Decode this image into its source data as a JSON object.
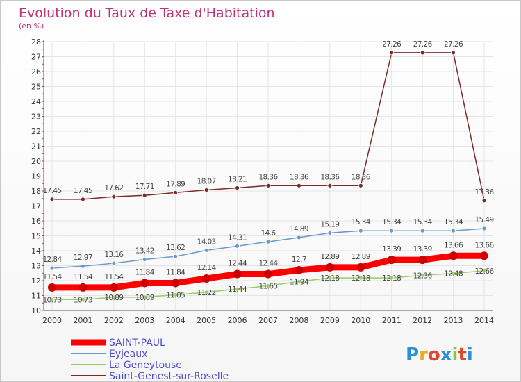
{
  "chart_data": {
    "type": "line",
    "title": "Evolution du Taux de Taxe d'Habitation",
    "subtitle": "(en %)",
    "ylim": [
      10,
      28
    ],
    "yticks": [
      10,
      11,
      12,
      13,
      14,
      15,
      16,
      17,
      18,
      19,
      20,
      21,
      22,
      23,
      24,
      25,
      26,
      27,
      28
    ],
    "x": [
      "2000",
      "2001",
      "2002",
      "2003",
      "2004",
      "2005",
      "2006",
      "2007",
      "2008",
      "2009",
      "2010",
      "2011",
      "2012",
      "2013",
      "2014"
    ],
    "grid": true,
    "legend": "bottom-left",
    "series": [
      {
        "name": "SAINT-PAUL",
        "color": "#ff0000",
        "values": [
          11.54,
          11.54,
          11.54,
          11.84,
          11.84,
          12.14,
          12.44,
          12.44,
          12.7,
          12.89,
          12.89,
          13.39,
          13.39,
          13.66,
          13.66
        ]
      },
      {
        "name": "Eyjeaux",
        "color": "#6699cc",
        "values": [
          12.84,
          12.97,
          13.16,
          13.42,
          13.62,
          14.03,
          14.31,
          14.6,
          14.89,
          15.19,
          15.34,
          15.34,
          15.34,
          15.34,
          15.49
        ]
      },
      {
        "name": "La Geneytouse",
        "color": "#99cc66",
        "values": [
          10.73,
          10.73,
          10.89,
          10.89,
          11.05,
          11.22,
          11.44,
          11.65,
          11.94,
          12.18,
          12.18,
          12.18,
          12.36,
          12.48,
          12.66
        ]
      },
      {
        "name": "Saint-Genest-sur-Roselle",
        "color": "#7a2a2a",
        "values": [
          17.45,
          17.45,
          17.62,
          17.71,
          17.89,
          18.07,
          18.21,
          18.36,
          18.36,
          18.36,
          18.36,
          27.26,
          27.26,
          27.26,
          17.36
        ]
      }
    ],
    "data_labels": [
      [
        "11.54",
        "11.54",
        "11.54",
        "11.84",
        "11.84",
        "12.14",
        "12.44",
        "12.44",
        "12.7",
        "12.89",
        "12.89",
        "13.39",
        "13.39",
        "13.66",
        "13.66"
      ],
      [
        "12.84",
        "12.97",
        "13.16",
        "13.42",
        "13.62",
        "14.03",
        "14.31",
        "14.6",
        "14.89",
        "15.19",
        "15.34",
        "15.34",
        "15.34",
        "15.34",
        "15.49"
      ],
      [
        "10.73",
        "10.73",
        "10.89",
        "10.89",
        "11.05",
        "11.22",
        "11.44",
        "11.65",
        "11.94",
        "12.18",
        "12.18",
        "12.18",
        "12.36",
        "12.48",
        "12.66"
      ],
      [
        "17.45",
        "17.45",
        "17.62",
        "17.71",
        "17.89",
        "18.07",
        "18.21",
        "18.36",
        "18.36",
        "18.36",
        "18.36",
        "27.26",
        "27.26",
        "27.26",
        "17.36"
      ]
    ]
  },
  "branding": {
    "logo_text": "Proxiti",
    "letter_colors": [
      "#2a8fd6",
      "#f5a623",
      "#e0462c",
      "#2a8fd6",
      "#8bc34a",
      "#e0462c",
      "#2a8fd6"
    ]
  }
}
